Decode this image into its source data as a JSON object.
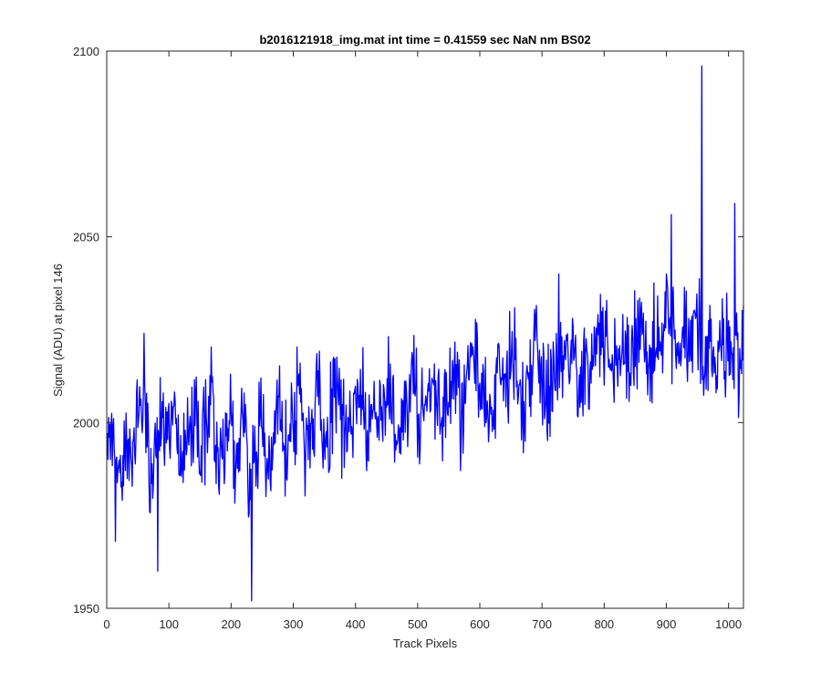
{
  "chart_data": {
    "type": "line",
    "title": "b2016121918_img.mat int time = 0.41559 sec  NaN nm BS02",
    "xlabel": "Track Pixels",
    "ylabel": "Signal (ADU) at pixel 146",
    "xlim": [
      0,
      1024
    ],
    "ylim": [
      1950,
      2100
    ],
    "x_ticks": [
      0,
      100,
      200,
      300,
      400,
      500,
      600,
      700,
      800,
      900,
      1000
    ],
    "y_ticks": [
      1950,
      2000,
      2050,
      2100
    ],
    "grid": false,
    "series": [
      {
        "color": "#0000ff",
        "x": [
          0,
          10,
          20,
          30,
          40,
          50,
          60,
          70,
          80,
          90,
          100,
          110,
          120,
          130,
          140,
          150,
          160,
          170,
          180,
          190,
          200,
          210,
          220,
          230,
          240,
          250,
          260,
          270,
          280,
          290,
          300,
          310,
          320,
          330,
          340,
          350,
          360,
          370,
          380,
          390,
          400,
          410,
          420,
          430,
          440,
          450,
          460,
          470,
          480,
          490,
          500,
          510,
          520,
          530,
          540,
          550,
          560,
          570,
          580,
          590,
          600,
          610,
          620,
          630,
          640,
          650,
          660,
          670,
          680,
          690,
          700,
          710,
          720,
          730,
          740,
          750,
          760,
          770,
          780,
          790,
          800,
          810,
          820,
          830,
          840,
          850,
          860,
          870,
          880,
          890,
          900,
          910,
          920,
          930,
          940,
          950,
          960,
          970,
          980,
          990,
          1000,
          1010,
          1020
        ],
        "y": [
          1996,
          2001,
          1986,
          1999,
          1993,
          2004,
          2009,
          1988,
          1998,
          2003,
          1995,
          2006,
          1983,
          1999,
          2002,
          1990,
          1996,
          2010,
          1985,
          1997,
          2000,
          1988,
          2005,
          1977,
          1994,
          2002,
          1989,
          1998,
          2008,
          1993,
          2003,
          2014,
          1995,
          2001,
          2009,
          1991,
          2004,
          2012,
          1996,
          2003,
          2000,
          2011,
          1995,
          2006,
          1999,
          2010,
          2003,
          1994,
          2007,
          2012,
          2004,
          1998,
          2013,
          2006,
          2001,
          2009,
          2014,
          1999,
          2011,
          2016,
          2006,
          2010,
          2003,
          2015,
          2009,
          2018,
          2012,
          2004,
          2016,
          2021,
          2013,
          2008,
          2019,
          2012,
          2024,
          2017,
          2009,
          2020,
          2014,
          2026,
          2019,
          2013,
          2011,
          2024,
          2015,
          2021,
          2027,
          2012,
          2022,
          2016,
          2030,
          2025,
          2014,
          2022,
          2019,
          2029,
          2018,
          2024,
          2012,
          2020,
          2026,
          2016,
          2021
        ]
      }
    ],
    "peaks": [
      {
        "x": 957,
        "y": 2096
      },
      {
        "x": 1010,
        "y": 2059
      },
      {
        "x": 233,
        "y": 1952
      },
      {
        "x": 60,
        "y": 2024
      },
      {
        "x": 908,
        "y": 2056
      },
      {
        "x": 82,
        "y": 1960
      },
      {
        "x": 14,
        "y": 1968
      },
      {
        "x": 727,
        "y": 2040
      }
    ]
  }
}
